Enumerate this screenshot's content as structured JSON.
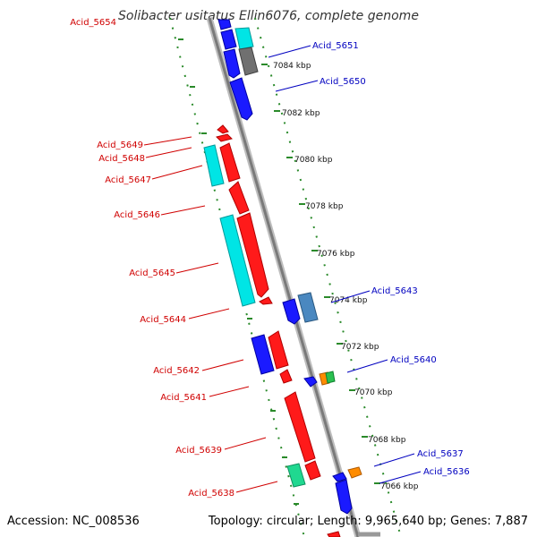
{
  "title": "Solibacter usitatus Ellin6076, complete genome",
  "footer": {
    "accession": "Accession: NC_008536",
    "summary": "Topology: circular; Length: 9,965,640 bp; Genes: 7,887"
  },
  "colors": {
    "forward_label": "#d00000",
    "reverse_label": "#0000c0",
    "backbone": "#888888",
    "ruler_dots": "#2a8a2a",
    "red": "#ff1a1a",
    "blue": "#1a1aff",
    "cyan": "#00e5e5",
    "gray": "#707070",
    "steel": "#4a88c0",
    "orange": "#ff8c00",
    "green": "#20d890"
  },
  "ruler": [
    "7084 kbp",
    "7082 kbp",
    "7080 kbp",
    "7078 kbp",
    "7076 kbp",
    "7074 kbp",
    "7072 kbp",
    "7070 kbp",
    "7068 kbp",
    "7066 kbp"
  ],
  "left_labels": [
    "Acid_5654",
    "Acid_5649",
    "Acid_5648",
    "Acid_5647",
    "Acid_5646",
    "Acid_5645",
    "Acid_5644",
    "Acid_5642",
    "Acid_5641",
    "Acid_5639",
    "Acid_5638"
  ],
  "right_labels": [
    "Acid_5651",
    "Acid_5650",
    "Acid_5643",
    "Acid_5640",
    "Acid_5637",
    "Acid_5636"
  ],
  "genes": [
    {
      "strand": "reverse",
      "color": "blue"
    },
    {
      "strand": "reverse",
      "color": "cyan"
    },
    {
      "strand": "reverse",
      "color": "gray"
    },
    {
      "strand": "forward",
      "color": "red"
    },
    {
      "strand": "forward",
      "color": "cyan"
    },
    {
      "strand": "reverse",
      "color": "blue"
    },
    {
      "strand": "reverse",
      "color": "steel"
    },
    {
      "strand": "forward",
      "color": "blue"
    },
    {
      "strand": "reverse",
      "color": "orange"
    },
    {
      "strand": "forward",
      "color": "green"
    }
  ]
}
